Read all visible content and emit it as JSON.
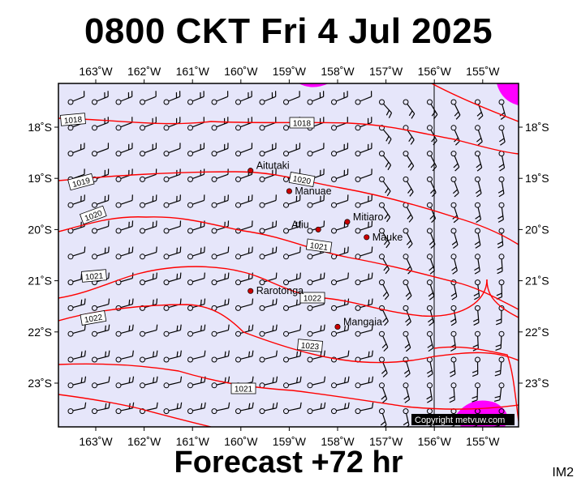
{
  "title": "0800 CKT Fri 4 Jul 2025",
  "footer": "Forecast +72 hr",
  "corner_label": "IM2",
  "copyright": "Copyright metvuw.com",
  "colors": {
    "background": "#e6e6fa",
    "isobar": "#ff0000",
    "rain": "#ff00ff",
    "station": "#cc0000",
    "text": "#000000"
  },
  "lon_labels": [
    "163˚W",
    "162˚W",
    "161˚W",
    "160˚W",
    "159˚W",
    "158˚W",
    "157˚W",
    "156˚W",
    "155˚W"
  ],
  "lat_labels": [
    "18˚S",
    "19˚S",
    "20˚S",
    "21˚S",
    "22˚S",
    "23˚S"
  ],
  "islands": [
    {
      "name": "Aitutaki",
      "lon": -159.8,
      "lat": -18.85
    },
    {
      "name": "Manuae",
      "lon": -159.0,
      "lat": -19.25
    },
    {
      "name": "Atiu",
      "lon": -158.4,
      "lat": -20.0
    },
    {
      "name": "Mitiaro",
      "lon": -157.8,
      "lat": -19.85
    },
    {
      "name": "Mauke",
      "lon": -157.4,
      "lat": -20.15
    },
    {
      "name": "Rarotonga",
      "lon": -159.8,
      "lat": -21.2
    },
    {
      "name": "Mangaia",
      "lon": -158.0,
      "lat": -21.9
    }
  ],
  "isobar_labels": [
    "1018",
    "1018",
    "1019",
    "1020",
    "1020",
    "1021",
    "1021",
    "1022",
    "1022",
    "1023"
  ]
}
